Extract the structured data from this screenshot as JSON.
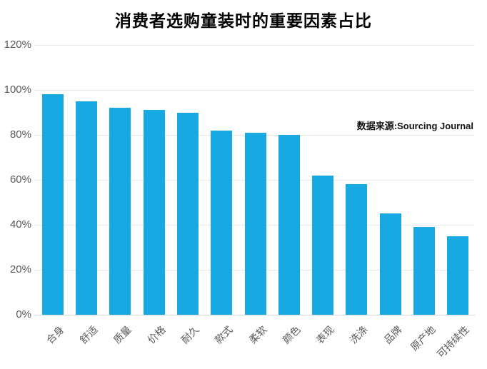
{
  "chart_data": {
    "type": "bar",
    "title": "消费者选购童装时的重要因素占比",
    "source_note": "数据来源:Sourcing Journal",
    "categories": [
      "合身",
      "舒适",
      "质量",
      "价格",
      "耐久",
      "款式",
      "柔软",
      "颜色",
      "表现",
      "洗涤",
      "品牌",
      "原产地",
      "可持续性"
    ],
    "values": [
      98,
      95,
      92,
      91,
      90,
      82,
      81,
      80,
      62,
      58,
      45,
      39,
      35
    ],
    "unit": "%",
    "xlabel": "",
    "ylabel": "",
    "ylim": [
      0,
      120
    ],
    "ytick_values": [
      0,
      20,
      40,
      60,
      80,
      100,
      120
    ],
    "ytick_labels": [
      "0%",
      "20%",
      "40%",
      "60%",
      "80%",
      "100%",
      "120%"
    ],
    "grid": true,
    "legend_position": "none",
    "colors": {
      "bar": "#18a9e2",
      "grid": "#e7e7e7",
      "baseline": "#d6d6d6",
      "axis_text": "#595959",
      "title_text": "#000000",
      "background": "#ffffff"
    }
  }
}
